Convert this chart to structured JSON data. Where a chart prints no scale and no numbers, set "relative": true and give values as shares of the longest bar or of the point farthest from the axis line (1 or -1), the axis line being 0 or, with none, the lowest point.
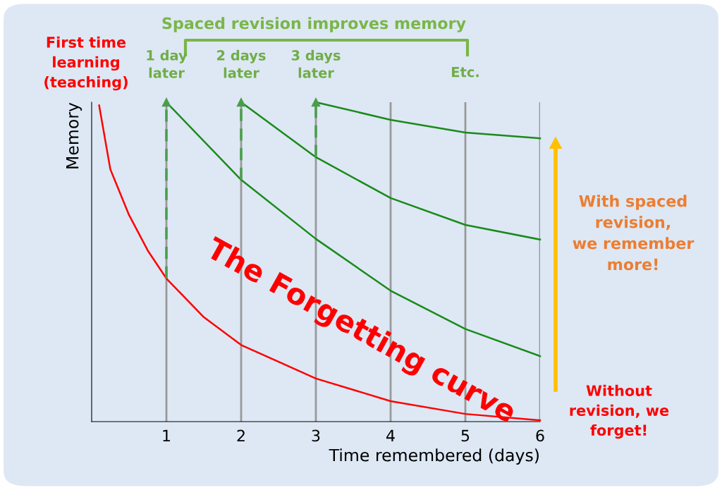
{
  "chart_data": {
    "type": "line",
    "relative": true,
    "xlabel": "Time remembered (days)",
    "ylabel": "Memory",
    "xlim": [
      0,
      6
    ],
    "xticks": [
      1,
      2,
      3,
      4,
      5,
      6
    ],
    "tick_labels": "x",
    "grid": "x",
    "legend": false,
    "marker": "none",
    "line_style": "solid",
    "series": [
      {
        "color": "#ff0000",
        "x": [
          0.1,
          0.25,
          0.5,
          0.75,
          1,
          1.5,
          2,
          3,
          4,
          5,
          6
        ],
        "values": [
          0.99,
          0.79,
          0.647,
          0.536,
          0.448,
          0.327,
          0.24,
          0.135,
          0.064,
          0.024,
          0.004
        ]
      },
      {
        "color": "#1a8a1a",
        "x": [
          1,
          2,
          3,
          4,
          5,
          6
        ],
        "values": [
          1,
          0.757,
          0.572,
          0.41,
          0.29,
          0.205
        ]
      },
      {
        "color": "#1a8a1a",
        "x": [
          2,
          3,
          4,
          5,
          6
        ],
        "values": [
          1,
          0.828,
          0.7,
          0.616,
          0.57
        ]
      },
      {
        "color": "#1a8a1a",
        "x": [
          3,
          4,
          5,
          6
        ],
        "values": [
          1,
          0.945,
          0.905,
          0.887
        ]
      },
      {
        "color": "#4a9e4a",
        "line_style": "dashed",
        "marker": "triangle",
        "x": [
          1,
          1
        ],
        "values": [
          0.448,
          1
        ]
      },
      {
        "color": "#4a9e4a",
        "line_style": "dashed",
        "marker": "triangle",
        "x": [
          2,
          2
        ],
        "values": [
          0.757,
          1
        ]
      },
      {
        "color": "#4a9e4a",
        "line_style": "dashed",
        "marker": "triangle",
        "x": [
          3,
          3
        ],
        "values": [
          0.828,
          1
        ]
      }
    ],
    "annotations": [
      "First time learning (teaching)",
      "Spaced revision improves memory",
      {
        "text": "1 day later",
        "x": 1,
        "y": 1
      },
      {
        "text": "2 days later",
        "x": 2,
        "y": 1
      },
      {
        "text": "3 days later",
        "x": 3,
        "y": 1
      },
      "Etc.",
      "The Forgetting curve",
      "With spaced revision, we remember more!",
      "Without revision, we forget!"
    ]
  }
}
